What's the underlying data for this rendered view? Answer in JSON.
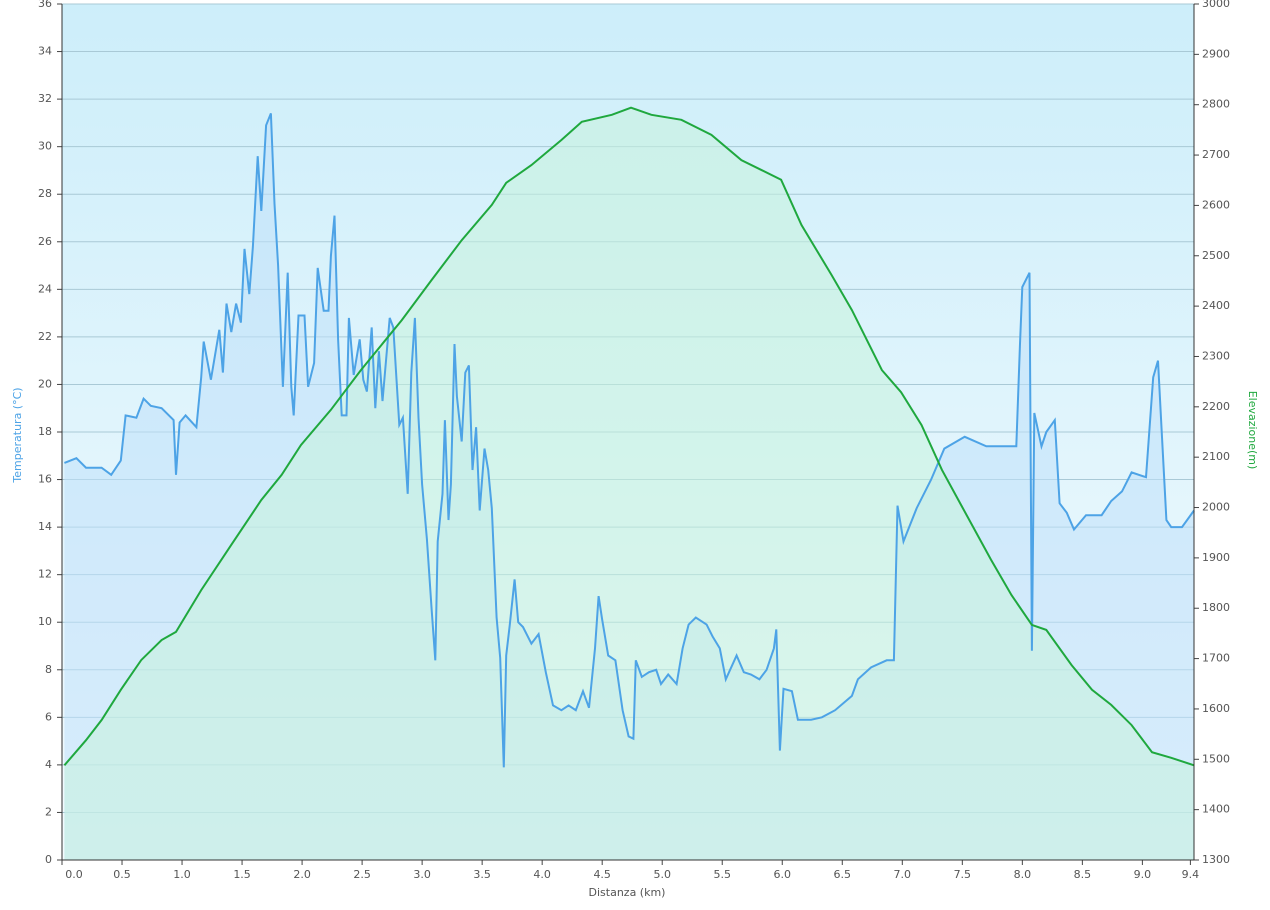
{
  "chart_data": {
    "type": "line",
    "xlabel": "Distanza  (km)",
    "ylabel": "Temperatura (°C)",
    "y2label": "Elevazione(m)",
    "xlim": [
      0,
      9.43
    ],
    "ylim": [
      0,
      36
    ],
    "y2lim": [
      1300,
      3000
    ],
    "grid": true,
    "xticks": [
      {
        "value": 0,
        "label": "0.0"
      },
      0.5,
      {
        "value": 1,
        "label": "1.0"
      },
      1.5,
      {
        "value": 2,
        "label": "2.0"
      },
      2.5,
      {
        "value": 3,
        "label": "3.0"
      },
      3.5,
      {
        "value": 4,
        "label": "4.0"
      },
      4.5,
      {
        "value": 5,
        "label": "5.0"
      },
      5.5,
      {
        "value": 6,
        "label": "6.0"
      },
      6.5,
      {
        "value": 7,
        "label": "7.0"
      },
      7.5,
      {
        "value": 8,
        "label": "8.0"
      },
      8.5,
      {
        "value": 9,
        "label": "9.0"
      },
      9.4
    ],
    "yticks": [
      0,
      2,
      4,
      6,
      8,
      10,
      12,
      14,
      16,
      18,
      20,
      22,
      24,
      26,
      28,
      30,
      32,
      34,
      36
    ],
    "y2ticks": [
      1300,
      1400,
      1500,
      1600,
      1700,
      1800,
      1900,
      2000,
      2100,
      2200,
      2300,
      2400,
      2500,
      2600,
      2700,
      2800,
      2900,
      3000
    ],
    "series": [
      {
        "color": "#4da3e6",
        "fill": "#bfe0fa",
        "axis": "y",
        "x": [
          0.02,
          0.12,
          0.2,
          0.33,
          0.41,
          0.49,
          0.53,
          0.62,
          0.68,
          0.74,
          0.83,
          0.93,
          0.95,
          0.98,
          1.03,
          1.12,
          1.16,
          1.18,
          1.24,
          1.31,
          1.34,
          1.37,
          1.41,
          1.45,
          1.49,
          1.52,
          1.56,
          1.59,
          1.63,
          1.66,
          1.7,
          1.74,
          1.77,
          1.8,
          1.84,
          1.88,
          1.91,
          1.93,
          1.97,
          2.02,
          2.05,
          2.1,
          2.13,
          2.18,
          2.22,
          2.24,
          2.27,
          2.3,
          2.33,
          2.37,
          2.39,
          2.43,
          2.48,
          2.51,
          2.54,
          2.58,
          2.61,
          2.64,
          2.67,
          2.73,
          2.76,
          2.81,
          2.84,
          2.88,
          2.91,
          2.94,
          2.97,
          3.0,
          3.04,
          3.08,
          3.11,
          3.13,
          3.17,
          3.19,
          3.22,
          3.24,
          3.27,
          3.29,
          3.33,
          3.36,
          3.39,
          3.42,
          3.45,
          3.48,
          3.52,
          3.55,
          3.58,
          3.62,
          3.65,
          3.68,
          3.7,
          3.73,
          3.77,
          3.8,
          3.84,
          3.91,
          3.97,
          4.03,
          4.09,
          4.16,
          4.22,
          4.28,
          4.34,
          4.39,
          4.44,
          4.47,
          4.5,
          4.55,
          4.61,
          4.67,
          4.72,
          4.76,
          4.78,
          4.83,
          4.89,
          4.95,
          4.99,
          5.05,
          5.12,
          5.17,
          5.22,
          5.28,
          5.37,
          5.42,
          5.48,
          5.53,
          5.62,
          5.68,
          5.74,
          5.81,
          5.87,
          5.93,
          5.95,
          5.98,
          6.01,
          6.08,
          6.13,
          6.24,
          6.33,
          6.44,
          6.58,
          6.63,
          6.74,
          6.87,
          6.93,
          6.96,
          7.01,
          7.12,
          7.24,
          7.35,
          7.52,
          7.7,
          7.95,
          7.98,
          8.0,
          8.06,
          8.08,
          8.1,
          8.16,
          8.2,
          8.27,
          8.31,
          8.37,
          8.43,
          8.53,
          8.66,
          8.74,
          8.83,
          8.91,
          9.03,
          9.09,
          9.13,
          9.16,
          9.2,
          9.24,
          9.33,
          9.43
        ],
        "values": [
          16.7,
          16.9,
          16.5,
          16.5,
          16.2,
          16.8,
          18.7,
          18.6,
          19.4,
          19.1,
          19.0,
          18.5,
          16.2,
          18.4,
          18.7,
          18.2,
          20.3,
          21.8,
          20.2,
          22.3,
          20.5,
          23.4,
          22.2,
          23.4,
          22.6,
          25.7,
          23.8,
          25.8,
          29.6,
          27.3,
          30.9,
          31.4,
          27.6,
          25,
          19.9,
          24.7,
          19.9,
          18.7,
          22.9,
          22.9,
          19.9,
          20.9,
          24.9,
          23.1,
          23.1,
          25.4,
          27.1,
          21.9,
          18.7,
          18.7,
          22.8,
          20.4,
          21.9,
          20.2,
          19.7,
          22.4,
          19.0,
          21.4,
          19.3,
          22.8,
          22.4,
          18.3,
          18.6,
          15.4,
          20.5,
          22.8,
          18.6,
          15.8,
          13.5,
          10.5,
          8.4,
          13.4,
          15.4,
          18.5,
          14.3,
          15.8,
          21.7,
          19.5,
          17.6,
          20.5,
          20.8,
          16.4,
          18.2,
          14.7,
          17.3,
          16.4,
          14.8,
          10.2,
          8.5,
          3.9,
          8.6,
          9.9,
          11.8,
          10.0,
          9.8,
          9.1,
          9.5,
          7.9,
          6.5,
          6.3,
          6.5,
          6.3,
          7.1,
          6.4,
          8.9,
          11.1,
          10.1,
          8.6,
          8.4,
          6.3,
          5.2,
          5.1,
          8.4,
          7.7,
          7.9,
          8.0,
          7.4,
          7.8,
          7.4,
          8.9,
          9.9,
          10.2,
          9.9,
          9.4,
          8.9,
          7.6,
          8.6,
          7.9,
          7.8,
          7.6,
          8.0,
          8.9,
          9.7,
          4.6,
          7.2,
          7.1,
          5.9,
          5.9,
          6.0,
          6.3,
          6.9,
          7.6,
          8.1,
          8.4,
          8.4,
          14.9,
          13.4,
          14.8,
          16.0,
          17.3,
          17.8,
          17.4,
          17.4,
          21.6,
          24.1,
          24.7,
          8.8,
          18.8,
          17.4,
          18.0,
          18.5,
          15.0,
          14.6,
          13.9,
          14.5,
          14.5,
          15.1,
          15.5,
          16.3,
          16.1,
          20.3,
          21.0,
          18.1,
          14.3,
          14.0,
          14.0,
          14.7
        ]
      },
      {
        "color": "#1fa83e",
        "fill": "#c6f2dc",
        "axis": "y2",
        "x": [
          0.02,
          0.2,
          0.33,
          0.49,
          0.66,
          0.83,
          0.95,
          1.16,
          1.41,
          1.66,
          1.83,
          1.99,
          2.24,
          2.49,
          2.83,
          3.08,
          3.33,
          3.58,
          3.7,
          3.91,
          4.16,
          4.33,
          4.58,
          4.74,
          4.91,
          5.16,
          5.41,
          5.66,
          5.83,
          5.99,
          6.16,
          6.41,
          6.58,
          6.83,
          6.99,
          7.16,
          7.33,
          7.49,
          7.74,
          7.91,
          8.08,
          8.2,
          8.41,
          8.58,
          8.74,
          8.91,
          9.08,
          9.24,
          9.43
        ],
        "values": [
          1488,
          1538,
          1578,
          1638,
          1697,
          1737,
          1753,
          1836,
          1926,
          2015,
          2065,
          2124,
          2194,
          2273,
          2372,
          2452,
          2531,
          2601,
          2645,
          2680,
          2730,
          2766,
          2780,
          2794,
          2780,
          2770,
          2740,
          2690,
          2670,
          2651,
          2561,
          2462,
          2392,
          2273,
          2229,
          2164,
          2075,
          2005,
          1896,
          1826,
          1767,
          1757,
          1687,
          1638,
          1608,
          1568,
          1514,
          1503,
          1488
        ]
      }
    ]
  }
}
